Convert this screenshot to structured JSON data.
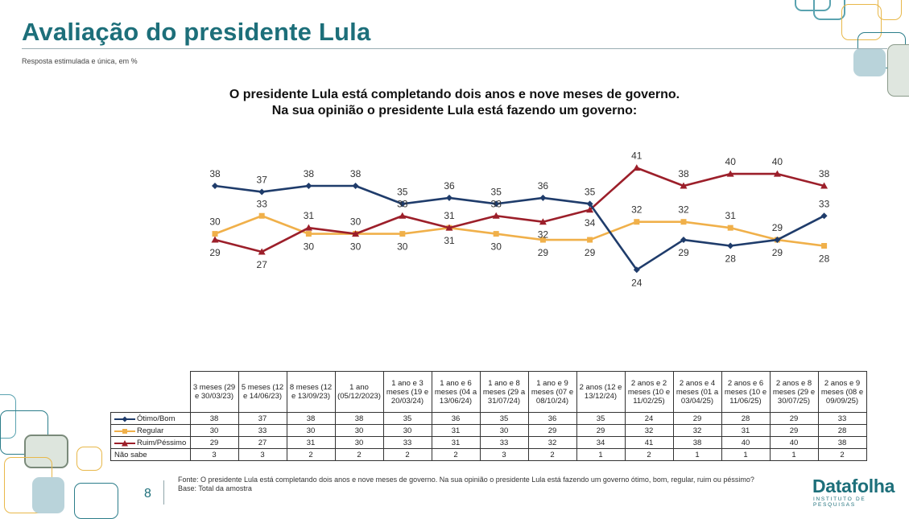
{
  "header": {
    "title": "Avaliação do presidente Lula",
    "subtitle": "Resposta estimulada e única, em %"
  },
  "question": {
    "line1": "O presidente Lula está completando dois anos e nove meses de governo.",
    "line2": "Na sua opinião o presidente Lula está fazendo um governo:"
  },
  "colors": {
    "otimo_bom": "#1f3c6b",
    "regular": "#f0b04a",
    "ruim_pessimo": "#9c1f2a",
    "brand": "#1d6f7a"
  },
  "chart_data": {
    "type": "line",
    "categories": [
      "3 meses (29 e 30/03/23)",
      "5 meses (12 e 14/06/23)",
      "8 meses (12 e 13/09/23)",
      "1 ano (05/12/2023)",
      "1 ano e 3 meses (19 e 20/03/24)",
      "1 ano e 6 meses (04 a 13/06/24)",
      "1 ano e 8 meses (29 a 31/07/24)",
      "1 ano e 9 meses (07 e 08/10/24)",
      "2 anos (12 e 13/12/24)",
      "2 anos e 2 meses (10 e 11/02/25)",
      "2 anos e 4 meses (01 a 03/04/25)",
      "2 anos e 6 meses (10 e 11/06/25)",
      "2 anos e 8 meses (29 e 30/07/25)",
      "2 anos e 9 meses (08 e 09/09/25)"
    ],
    "series": [
      {
        "key": "otimo_bom",
        "name": "Ótimo/Bom",
        "marker": "diamond",
        "values": [
          38,
          37,
          38,
          38,
          35,
          36,
          35,
          36,
          35,
          24,
          29,
          28,
          29,
          33
        ]
      },
      {
        "key": "regular",
        "name": "Regular",
        "marker": "square",
        "values": [
          30,
          33,
          30,
          30,
          30,
          31,
          30,
          29,
          29,
          32,
          32,
          31,
          29,
          28
        ]
      },
      {
        "key": "ruim_pessimo",
        "name": "Ruim/Péssimo",
        "marker": "triangle",
        "values": [
          29,
          27,
          31,
          30,
          33,
          31,
          33,
          32,
          34,
          41,
          38,
          40,
          40,
          38
        ]
      }
    ],
    "table_extra_rows": [
      {
        "name": "Não sabe",
        "values": [
          3,
          3,
          2,
          2,
          2,
          2,
          3,
          2,
          1,
          2,
          1,
          1,
          1,
          2
        ]
      }
    ],
    "legend": "table"
  },
  "footer": {
    "page_number": "8",
    "source_line1": "Fonte: O presidente Lula está completando dois anos e nove meses de governo. Na sua opinião o presidente Lula está fazendo um governo ótimo, bom, regular, ruim ou péssimo?",
    "source_line2": "Base: Total da amostra",
    "logo": "Datafolha",
    "logo_sub": "INSTITUTO DE PESQUISAS"
  }
}
